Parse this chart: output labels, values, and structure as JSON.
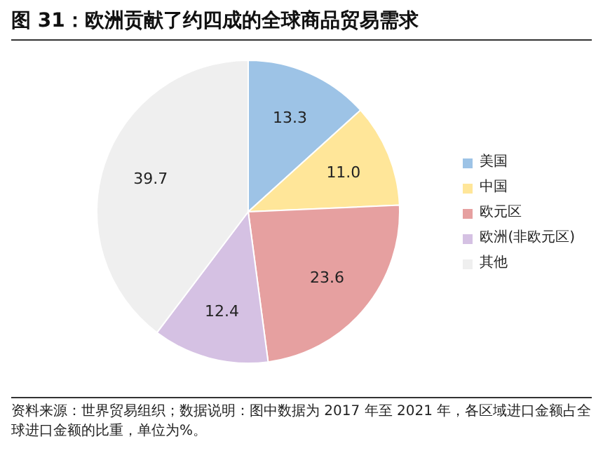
{
  "chart_data": {
    "type": "pie",
    "title": "图 31：欧洲贡献了约四成的全球商品贸易需求",
    "categories": [
      "美国",
      "中国",
      "欧元区",
      "欧洲(非欧元区)",
      "其他"
    ],
    "values": [
      13.3,
      11.0,
      23.6,
      12.4,
      39.7
    ],
    "value_labels": [
      "13.3",
      "11.0",
      "23.6",
      "12.4",
      "39.7"
    ],
    "colors": [
      "#9dc3e6",
      "#ffe699",
      "#e6a0a0",
      "#d5c1e3",
      "#efefef"
    ],
    "legend": "right",
    "annotations": [
      "资料来源：世界贸易组织；数据说明：图中数据为 2017 年至 2021 年，各区域进口金额占全球进口金额的比重，单位为%。"
    ]
  }
}
